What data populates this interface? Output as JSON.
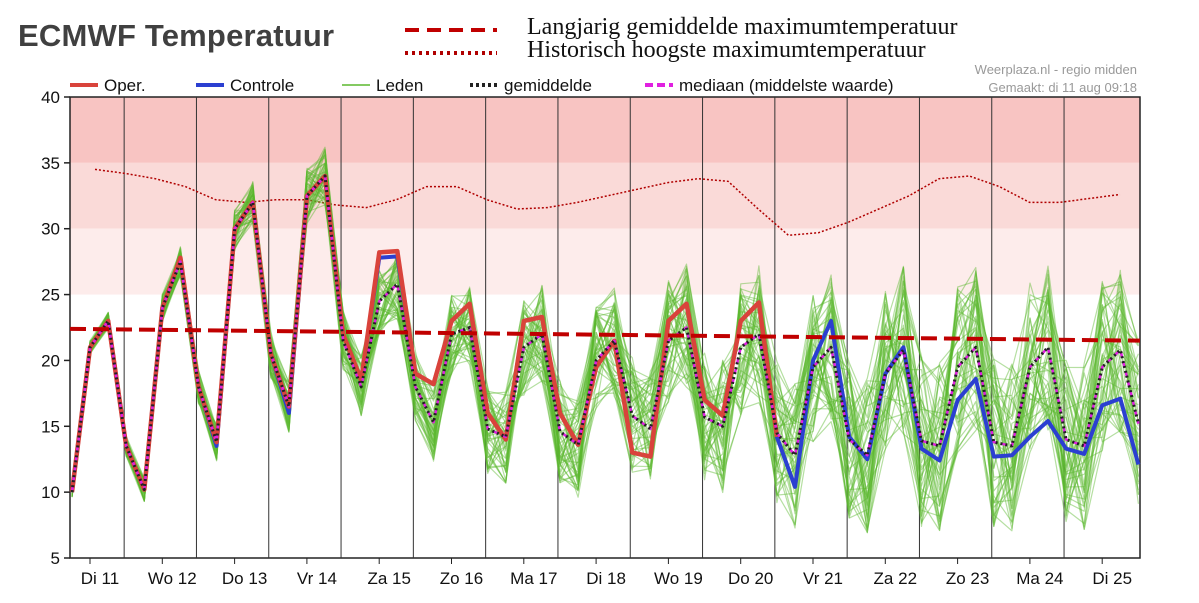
{
  "title": "ECMWF Temperatuur",
  "overlay_legend": [
    {
      "label": "Langjarig gemiddelde maximumtemperatuur",
      "color": "#c00000",
      "style": "dashed"
    },
    {
      "label": "Historisch hoogste maximumtemperatuur",
      "color": "#b00000",
      "style": "dotted"
    }
  ],
  "source_text": {
    "line1": "Weerplaza.nl - regio midden",
    "line2": "Gemaakt: di 11 aug 09:18"
  },
  "colors": {
    "oper": "#d9433b",
    "controle": "#2b3fd1",
    "leden": "#5cb82e",
    "gemiddelde": "#222222",
    "mediaan": "#e020e0",
    "band_high": "#f8c4c2",
    "band_mid": "#fadad8",
    "band_low": "#fdeceb"
  },
  "chart_data": {
    "type": "line",
    "ylim": [
      5,
      40
    ],
    "yticks": [
      "5",
      "10",
      "15",
      "20",
      "25",
      "30",
      "35",
      "40"
    ],
    "grid": "vertical day separators",
    "legend_position": "top",
    "bands": [
      {
        "from": 35,
        "to": 40,
        "color": "band_high"
      },
      {
        "from": 30,
        "to": 35,
        "color": "band_mid"
      },
      {
        "from": 25,
        "to": 30,
        "color": "band_low"
      }
    ],
    "days": [
      "Di 11",
      "Wo 12",
      "Do 13",
      "Vr 14",
      "Za 15",
      "Zo 16",
      "Ma 17",
      "Di 18",
      "Wo 19",
      "Do 20",
      "Vr 21",
      "Za 22",
      "Zo 23",
      "Ma 24",
      "Di 25"
    ],
    "series": [
      {
        "name": "Oper.",
        "key": "oper",
        "values": [
          10,
          21,
          23,
          13.5,
          10.2,
          24,
          27.8,
          18,
          13.8,
          30,
          32,
          20.5,
          16.5,
          32.5,
          34,
          22,
          18.5,
          28.2,
          28.3,
          19,
          18.2,
          23,
          24.3,
          16,
          14,
          23,
          23.3,
          16,
          13.6,
          19.5,
          21.5,
          13,
          12.7,
          23,
          24.3,
          17,
          15.8,
          23,
          24.4,
          14.2
        ]
      },
      {
        "name": "Controle",
        "key": "controle",
        "values": [
          10,
          21,
          23,
          13.5,
          10.2,
          24,
          27.8,
          18,
          13.5,
          30,
          32,
          20.5,
          16,
          32.5,
          34,
          22,
          18.5,
          27.8,
          27.9,
          19,
          18.2,
          23,
          24.3,
          16,
          14,
          23,
          23.3,
          16,
          13.6,
          19.5,
          21.5,
          13,
          12.7,
          23,
          24.3,
          17,
          15.8,
          23,
          24.4,
          14.2,
          10.4,
          20,
          23,
          14.2,
          12.5,
          19,
          21,
          13.3,
          12.4,
          17,
          18.6,
          12.7,
          12.8,
          14.2,
          15.4,
          13.3,
          12.9,
          16.6,
          17.1,
          12.1
        ]
      },
      {
        "name": "gemiddelde",
        "key": "gemiddelde",
        "values": [
          10,
          21,
          23,
          13.5,
          10.2,
          24,
          27.5,
          18,
          13.8,
          30,
          32,
          20.5,
          16.5,
          32.5,
          34,
          21.5,
          18,
          24.5,
          25.8,
          18,
          15.3,
          22,
          22.5,
          14.8,
          14.2,
          21,
          22,
          14.6,
          13.6,
          20,
          21.5,
          15.8,
          14.8,
          21.5,
          22.5,
          15.7,
          15,
          21,
          22,
          14.5,
          12.8,
          19.5,
          21,
          14,
          12.8,
          19,
          20.8,
          13.9,
          13.5,
          19.5,
          21,
          13.8,
          13.5,
          19.5,
          21,
          14,
          13.5,
          19.5,
          20.8,
          15.2
        ]
      },
      {
        "name": "mediaan (middelste waarde)",
        "key": "mediaan",
        "values": [
          10,
          21,
          23,
          13.5,
          10.2,
          24,
          27.5,
          18,
          13.8,
          30,
          32,
          20.5,
          16.5,
          32.5,
          34,
          21.5,
          18,
          24.5,
          25.8,
          18,
          15.3,
          22,
          22.5,
          14.8,
          14.2,
          21,
          22,
          14.6,
          13.6,
          20,
          21.5,
          15.8,
          14.8,
          21.5,
          22.5,
          15.7,
          15,
          21,
          22,
          14.5,
          12.8,
          19.5,
          21,
          14,
          12.8,
          19,
          20.8,
          13.9,
          13.5,
          19.5,
          21,
          13.8,
          13.5,
          19.5,
          21,
          14,
          13.5,
          19.5,
          20.8,
          15.2
        ]
      },
      {
        "name": "Leden",
        "key": "leden",
        "members": 50,
        "spread_note": "ensemble members envelope around gemiddelde"
      }
    ],
    "langjarig_gemiddelde": {
      "start": 22.4,
      "end": 21.5
    },
    "historisch_hoogste": [
      34.5,
      34.2,
      33.8,
      33.2,
      32.2,
      32.0,
      32.2,
      32.2,
      31.8,
      31.6,
      32.2,
      33.2,
      33.2,
      32.2,
      31.5,
      31.6,
      32.0,
      32.5,
      33.0,
      33.5,
      33.8,
      33.6,
      31.5,
      29.5,
      29.7,
      30.5,
      31.5,
      32.5,
      33.8,
      34.0,
      33.2,
      32.0,
      32.0,
      32.3,
      32.6
    ]
  },
  "legend": [
    {
      "label": "Oper.",
      "key": "oper"
    },
    {
      "label": "Controle",
      "key": "controle"
    },
    {
      "label": "Leden",
      "key": "leden"
    },
    {
      "label": "gemiddelde",
      "key": "gemiddelde"
    },
    {
      "label": "mediaan (middelste waarde)",
      "key": "mediaan"
    }
  ]
}
